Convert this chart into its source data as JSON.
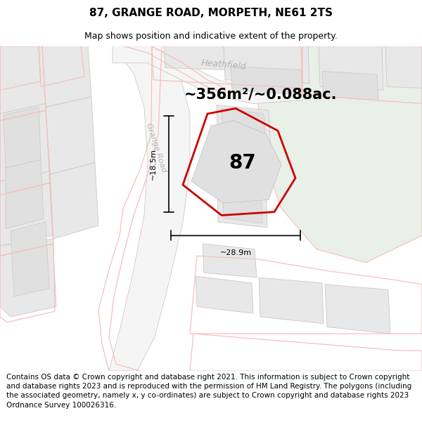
{
  "title": "87, GRANGE ROAD, MORPETH, NE61 2TS",
  "subtitle": "Map shows position and indicative extent of the property.",
  "title_fontsize": 11,
  "subtitle_fontsize": 9,
  "footer_text": "Contains OS data © Crown copyright and database right 2021. This information is subject to Crown copyright and database rights 2023 and is reproduced with the permission of HM Land Registry. The polygons (including the associated geometry, namely x, y co-ordinates) are subject to Crown copyright and database rights 2023 Ordnance Survey 100026316.",
  "footer_fontsize": 7.5,
  "map_bg": "#ffffff",
  "area_label": "~356m²/~0.088ac.",
  "area_fontsize": 15,
  "property_number": "87",
  "property_fontsize": 20,
  "dim_h": "~18.5m",
  "dim_w": "~28.9m",
  "road_color": "#f5c0c0",
  "road_label_color": "#b8b0b8",
  "bldg_fill": "#e8e8e8",
  "bldg_ec": "#d0c8c8",
  "green_fill": "#e8f0e8",
  "road_label": "Grange Road",
  "heathfield_label": "Heathfield"
}
